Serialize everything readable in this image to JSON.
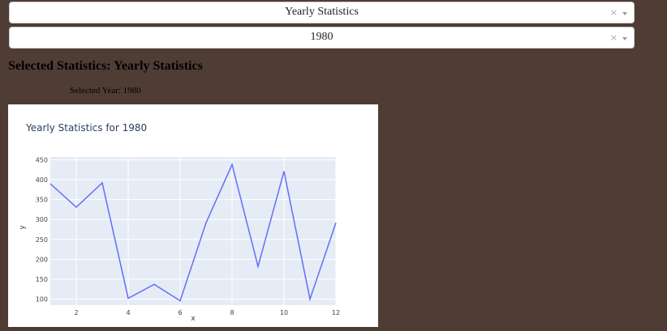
{
  "dropdowns": {
    "statistic": {
      "value": "Yearly Statistics",
      "clear": "×"
    },
    "year": {
      "value": "1980",
      "clear": "×"
    }
  },
  "heading": "Selected Statistics: Yearly Statistics",
  "selected_year_text": "Selected Year: 1980",
  "colors": {
    "background": "#4f3c35",
    "plot_bg": "#e5ecf6",
    "line": "#636efa"
  },
  "chart_data": {
    "type": "line",
    "title": "Yearly Statistics for 1980",
    "xlabel": "x",
    "ylabel": "y",
    "x": [
      1,
      2,
      3,
      4,
      5,
      6,
      7,
      8,
      9,
      10,
      11,
      12
    ],
    "y": [
      390,
      331,
      392,
      102,
      137,
      96,
      292,
      438,
      182,
      421,
      100,
      292
    ],
    "xlim": [
      1,
      12
    ],
    "ylim": [
      85,
      457
    ],
    "xticks": [
      2,
      4,
      6,
      8,
      10,
      12
    ],
    "yticks": [
      100,
      150,
      200,
      250,
      300,
      350,
      400,
      450
    ],
    "grid": true
  }
}
